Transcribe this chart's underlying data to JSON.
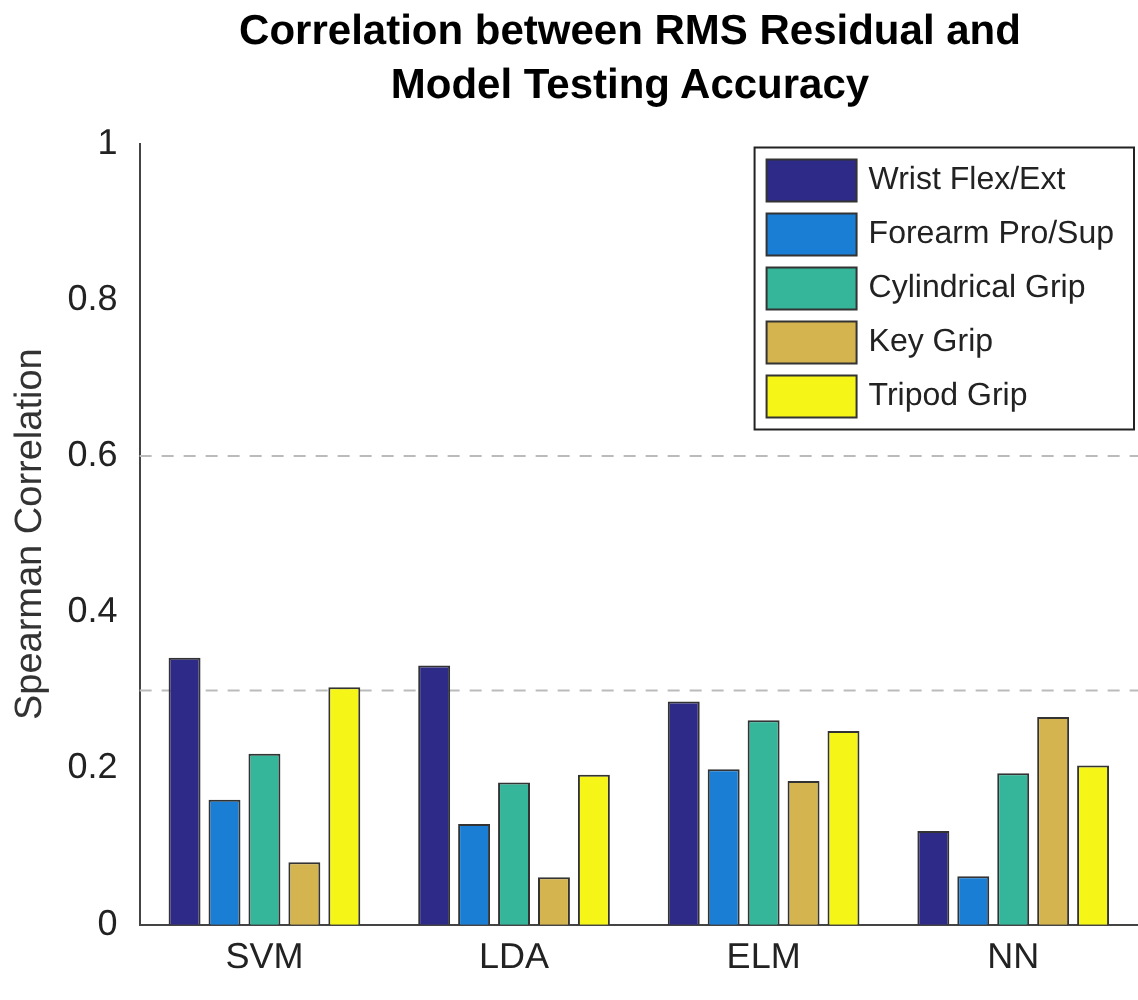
{
  "chart_data": {
    "type": "bar",
    "title": "Correlation between RMS Residual and Model Testing Accuracy",
    "ylabel": "Spearman Correlation",
    "categories": [
      "SVM",
      "LDA",
      "ELM",
      "NN"
    ],
    "series": [
      {
        "name": "Wrist Flex/Ext",
        "color": "#2e2a87",
        "values": [
          0.342,
          0.332,
          0.286,
          0.12
        ]
      },
      {
        "name": "Forearm Pro/Sup",
        "color": "#1a7fd4",
        "values": [
          0.16,
          0.129,
          0.199,
          0.062
        ]
      },
      {
        "name": "Cylindrical Grip",
        "color": "#35b59a",
        "values": [
          0.219,
          0.182,
          0.262,
          0.194
        ]
      },
      {
        "name": "Key Grip",
        "color": "#d4b44f",
        "values": [
          0.08,
          0.061,
          0.184,
          0.266
        ]
      },
      {
        "name": "Tripod Grip",
        "color": "#f5f518",
        "values": [
          0.304,
          0.192,
          0.248,
          0.204
        ]
      }
    ],
    "ylim": [
      0,
      1
    ],
    "yticks": [
      0,
      0.2,
      0.4,
      0.6,
      0.8,
      1
    ],
    "grid": false,
    "legend": "top right",
    "ref_lines": [
      {
        "axis": "y",
        "value": 0.3,
        "color": "#bbbbbb",
        "line_style": "dashed"
      },
      {
        "axis": "y",
        "value": 0.6,
        "color": "#bbbbbb",
        "line_style": "dashed"
      }
    ]
  }
}
